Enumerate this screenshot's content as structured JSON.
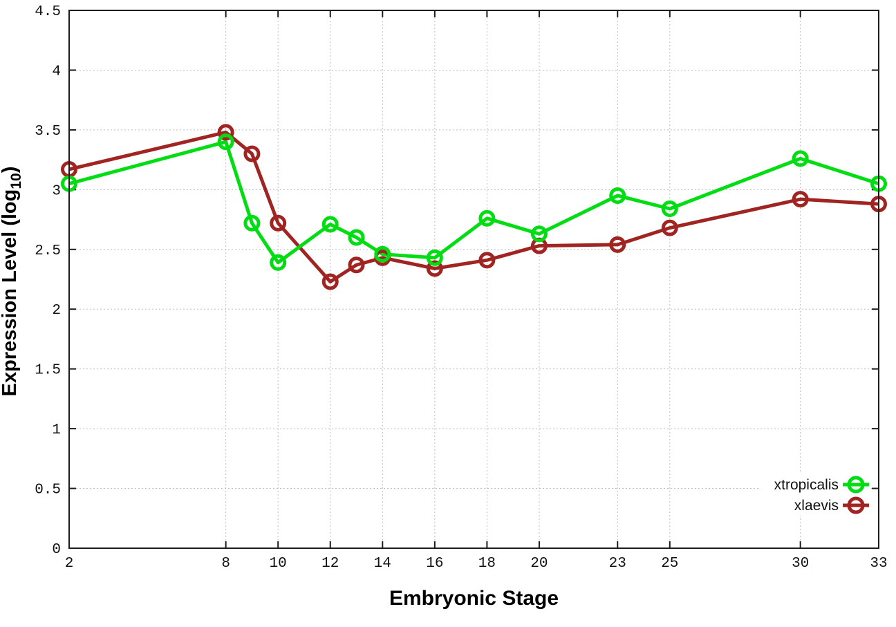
{
  "chart_data": {
    "type": "line",
    "title": "",
    "xlabel": "Embryonic Stage",
    "ylabel": "Expression Level (log10)",
    "ylabel_parts": {
      "prefix": "Expression Level (log",
      "sub": "10",
      "suffix": ")"
    },
    "x": [
      2,
      8,
      9,
      10,
      12,
      13,
      14,
      16,
      18,
      20,
      23,
      25,
      30,
      33
    ],
    "xticks": [
      2,
      8,
      10,
      12,
      14,
      16,
      18,
      20,
      23,
      25,
      30,
      33
    ],
    "yticks": [
      0,
      0.5,
      1,
      1.5,
      2,
      2.5,
      3,
      3.5,
      4,
      4.5
    ],
    "xlim": [
      2,
      33
    ],
    "ylim": [
      0,
      4.5
    ],
    "grid": true,
    "legend_position": "bottom-right",
    "series": [
      {
        "name": "xtropicalis",
        "color": "#00dd12",
        "values": [
          3.05,
          3.4,
          2.72,
          2.39,
          2.71,
          2.6,
          2.46,
          2.43,
          2.76,
          2.63,
          2.95,
          2.84,
          3.26,
          3.05
        ]
      },
      {
        "name": "xlaevis",
        "color": "#a02522",
        "values": [
          3.17,
          3.48,
          3.3,
          2.72,
          2.23,
          2.37,
          2.43,
          2.34,
          2.41,
          2.53,
          2.54,
          2.68,
          2.92,
          2.88
        ]
      }
    ]
  },
  "colors": {
    "grid": "#bdbdbd",
    "axis": "#1c1c1c",
    "background": "#ffffff"
  }
}
